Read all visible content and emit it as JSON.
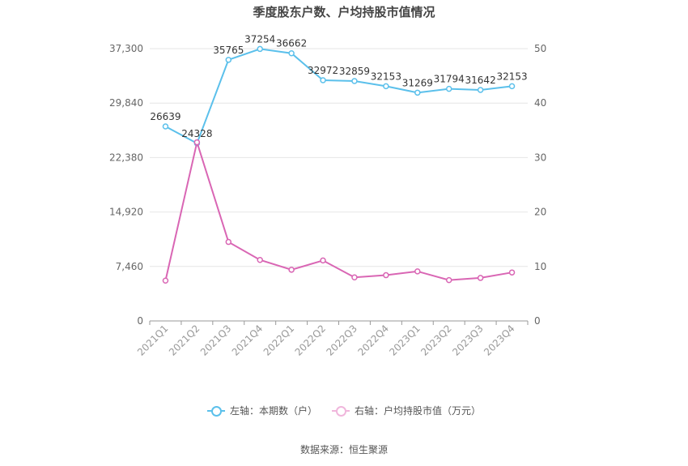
{
  "chart_data": {
    "type": "line",
    "title": "季度股东户数、户均持股市值情况",
    "categories": [
      "2021Q1",
      "2021Q2",
      "2021Q3",
      "2021Q4",
      "2022Q1",
      "2022Q2",
      "2022Q3",
      "2022Q4",
      "2023Q1",
      "2023Q2",
      "2023Q3",
      "2023Q4"
    ],
    "left_axis": {
      "ticks": [
        "0",
        "7,460",
        "14,920",
        "22,380",
        "29,840",
        "37,300"
      ],
      "min": 0,
      "max": 37300
    },
    "right_axis": {
      "ticks": [
        "0",
        "10",
        "20",
        "30",
        "40",
        "50"
      ],
      "min": 0,
      "max": 50
    },
    "series": [
      {
        "name": "左轴：本期数（户）",
        "axis": "left",
        "color": "#5bc0eb",
        "values": [
          26639,
          24328,
          35765,
          37254,
          36662,
          32972,
          32859,
          32153,
          31269,
          31794,
          31642,
          32153
        ],
        "labels": [
          "26639",
          "24328",
          "35765",
          "37254",
          "36662",
          "32972",
          "32859",
          "32153",
          "31269",
          "31794",
          "31642",
          "32153"
        ]
      },
      {
        "name": "右轴：户均持股市值（万元）",
        "axis": "right",
        "color": "#d966b4",
        "values": [
          7.4,
          32.8,
          14.5,
          11.2,
          9.4,
          11.1,
          8.0,
          8.4,
          9.1,
          7.5,
          7.9,
          8.9
        ]
      }
    ],
    "grid": true,
    "legend_position": "bottom"
  },
  "source": "数据来源：恒生聚源"
}
